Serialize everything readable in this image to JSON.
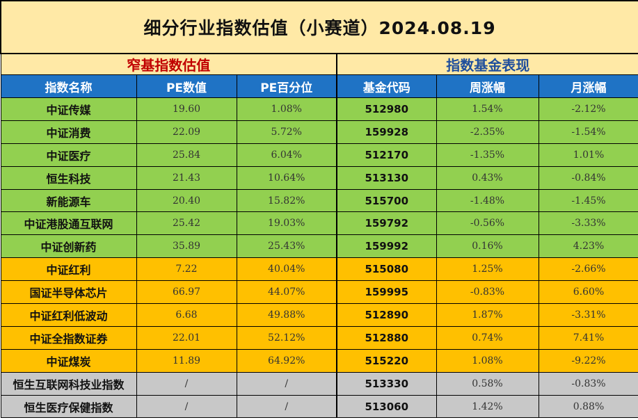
{
  "title": "细分行业指数估值（小赛道）2024.08.19",
  "sections": {
    "left": "窄基指数估值",
    "right": "指数基金表现"
  },
  "headers": [
    "指数名称",
    "PE数值",
    "PE百分位",
    "基金代码",
    "周涨幅",
    "月涨幅"
  ],
  "rows": [
    {
      "name": "中证传媒",
      "pe": "19.60",
      "pe_pct": "1.08%",
      "code": "512980",
      "week": "1.54%",
      "month": "-2.12%",
      "group": "green"
    },
    {
      "name": "中证消费",
      "pe": "22.09",
      "pe_pct": "5.72%",
      "code": "159928",
      "week": "-2.35%",
      "month": "-1.54%",
      "group": "green"
    },
    {
      "name": "中证医疗",
      "pe": "25.84",
      "pe_pct": "6.04%",
      "code": "512170",
      "week": "-1.35%",
      "month": "1.01%",
      "group": "green"
    },
    {
      "name": "恒生科技",
      "pe": "21.43",
      "pe_pct": "10.64%",
      "code": "513130",
      "week": "0.43%",
      "month": "-0.84%",
      "group": "green"
    },
    {
      "name": "新能源车",
      "pe": "20.40",
      "pe_pct": "15.82%",
      "code": "515700",
      "week": "-1.48%",
      "month": "-1.45%",
      "group": "green"
    },
    {
      "name": "中证港股通互联网",
      "pe": "25.42",
      "pe_pct": "19.03%",
      "code": "159792",
      "week": "-0.56%",
      "month": "-3.33%",
      "group": "green"
    },
    {
      "name": "中证创新药",
      "pe": "35.89",
      "pe_pct": "25.43%",
      "code": "159992",
      "week": "0.16%",
      "month": "4.23%",
      "group": "green"
    },
    {
      "name": "中证红利",
      "pe": "7.22",
      "pe_pct": "40.04%",
      "code": "515080",
      "week": "1.25%",
      "month": "-2.66%",
      "group": "orange"
    },
    {
      "name": "国证半导体芯片",
      "pe": "66.97",
      "pe_pct": "44.07%",
      "code": "159995",
      "week": "-0.83%",
      "month": "6.60%",
      "group": "orange"
    },
    {
      "name": "中证红利低波动",
      "pe": "6.68",
      "pe_pct": "49.88%",
      "code": "512890",
      "week": "1.87%",
      "month": "-3.31%",
      "group": "orange"
    },
    {
      "name": "中证全指数证券",
      "pe": "22.01",
      "pe_pct": "52.12%",
      "code": "512880",
      "week": "0.74%",
      "month": "7.41%",
      "group": "orange"
    },
    {
      "name": "中证煤炭",
      "pe": "11.89",
      "pe_pct": "64.92%",
      "code": "515220",
      "week": "1.08%",
      "month": "-9.22%",
      "group": "orange"
    },
    {
      "name": "恒生互联网科技业指数",
      "pe": "/",
      "pe_pct": "/",
      "code": "513330",
      "week": "0.58%",
      "month": "-0.83%",
      "group": "gray"
    },
    {
      "name": "恒生医疗保健指数",
      "pe": "/",
      "pe_pct": "/",
      "code": "513060",
      "week": "1.42%",
      "month": "0.88%",
      "group": "gray"
    }
  ],
  "colors": {
    "title_bg": "#ffe9a6",
    "header_bg": "#1f73c5",
    "green": "#92d050",
    "orange": "#ffc000",
    "gray": "#c8c8c8",
    "section_left_text": "#c00000",
    "section_right_text": "#1f4e9c"
  }
}
